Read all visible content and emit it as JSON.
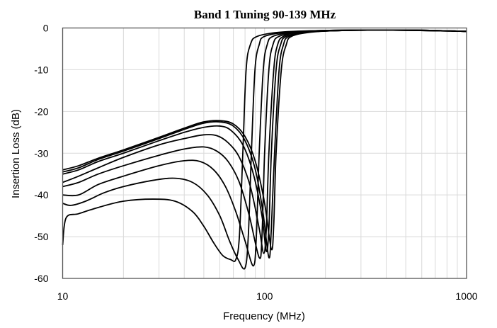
{
  "chart_data": {
    "type": "line",
    "title": "Band 1 Tuning 90-139 MHz",
    "xlabel": "Frequency (MHz)",
    "ylabel": "Insertion Loss (dB)",
    "xscale": "log",
    "xlim": [
      10,
      1000
    ],
    "ylim": [
      -60,
      0
    ],
    "xticks": [
      "10",
      "100",
      "1000"
    ],
    "yticks": [
      "0",
      "-10",
      "-20",
      "-30",
      "-40",
      "-50",
      "-60"
    ],
    "grid": true,
    "line_color": "#000000",
    "grid_color": "#d9d9d9",
    "series": [
      {
        "points": [
          [
            10,
            -52
          ],
          [
            10.4,
            -45.5
          ],
          [
            12,
            -44.5
          ],
          [
            15,
            -43
          ],
          [
            20,
            -41.5
          ],
          [
            28,
            -41
          ],
          [
            36,
            -41.5
          ],
          [
            44,
            -44
          ],
          [
            50,
            -47.5
          ],
          [
            56,
            -51.5
          ],
          [
            62,
            -54.5
          ],
          [
            68,
            -55.5
          ],
          [
            72,
            -55.5
          ],
          [
            75,
            -50
          ],
          [
            78,
            -30
          ],
          [
            81,
            -10
          ],
          [
            85,
            -4
          ],
          [
            92,
            -2
          ],
          [
            120,
            -1
          ],
          [
            200,
            -0.6
          ],
          [
            400,
            -0.5
          ],
          [
            1000,
            -0.8
          ]
        ]
      },
      {
        "points": [
          [
            10,
            -42
          ],
          [
            11,
            -42.5
          ],
          [
            13,
            -41.5
          ],
          [
            16,
            -39.5
          ],
          [
            20,
            -38
          ],
          [
            28,
            -36.5
          ],
          [
            36,
            -36
          ],
          [
            44,
            -37
          ],
          [
            52,
            -40
          ],
          [
            60,
            -45
          ],
          [
            67,
            -51
          ],
          [
            74,
            -55.5
          ],
          [
            80,
            -57.5
          ],
          [
            83,
            -50
          ],
          [
            86,
            -30
          ],
          [
            89.6,
            -10
          ],
          [
            94,
            -4
          ],
          [
            100,
            -2
          ],
          [
            130,
            -1
          ],
          [
            200,
            -0.6
          ],
          [
            400,
            -0.5
          ],
          [
            1000,
            -0.8
          ]
        ]
      },
      {
        "points": [
          [
            10,
            -40
          ],
          [
            12,
            -40
          ],
          [
            15,
            -37.5
          ],
          [
            20,
            -35.5
          ],
          [
            30,
            -33
          ],
          [
            40,
            -31.8
          ],
          [
            48,
            -32
          ],
          [
            56,
            -34
          ],
          [
            64,
            -38
          ],
          [
            72,
            -44
          ],
          [
            80,
            -51
          ],
          [
            88,
            -57
          ],
          [
            91,
            -50
          ],
          [
            94,
            -30
          ],
          [
            98.5,
            -10
          ],
          [
            103,
            -4
          ],
          [
            110,
            -2
          ],
          [
            140,
            -1
          ],
          [
            200,
            -0.6
          ],
          [
            400,
            -0.5
          ],
          [
            1000,
            -0.8
          ]
        ]
      },
      {
        "points": [
          [
            10,
            -38
          ],
          [
            12,
            -37
          ],
          [
            15,
            -35
          ],
          [
            20,
            -33
          ],
          [
            30,
            -30.5
          ],
          [
            40,
            -29
          ],
          [
            50,
            -28.5
          ],
          [
            58,
            -29.5
          ],
          [
            66,
            -32
          ],
          [
            75,
            -37
          ],
          [
            84,
            -45
          ],
          [
            94,
            -55
          ],
          [
            97,
            -50
          ],
          [
            100,
            -30
          ],
          [
            105,
            -10
          ],
          [
            110,
            -4
          ],
          [
            118,
            -2
          ],
          [
            150,
            -1
          ],
          [
            250,
            -0.6
          ],
          [
            500,
            -0.5
          ],
          [
            1000,
            -0.8
          ]
        ]
      },
      {
        "points": [
          [
            10,
            -37
          ],
          [
            12,
            -35.5
          ],
          [
            15,
            -33.5
          ],
          [
            20,
            -31
          ],
          [
            30,
            -28
          ],
          [
            40,
            -26.5
          ],
          [
            50,
            -25.6
          ],
          [
            58,
            -25.8
          ],
          [
            66,
            -27.5
          ],
          [
            75,
            -31
          ],
          [
            85,
            -38
          ],
          [
            94,
            -48
          ],
          [
            99,
            -54
          ],
          [
            102,
            -48
          ],
          [
            105,
            -30
          ],
          [
            111,
            -10
          ],
          [
            116,
            -4
          ],
          [
            124,
            -2
          ],
          [
            150,
            -1
          ],
          [
            250,
            -0.6
          ],
          [
            500,
            -0.5
          ],
          [
            1000,
            -0.8
          ]
        ]
      },
      {
        "points": [
          [
            10,
            -35
          ],
          [
            12,
            -34
          ],
          [
            15,
            -32
          ],
          [
            20,
            -30
          ],
          [
            30,
            -27
          ],
          [
            40,
            -25
          ],
          [
            50,
            -23.8
          ],
          [
            60,
            -23.5
          ],
          [
            68,
            -24.5
          ],
          [
            78,
            -28
          ],
          [
            88,
            -35
          ],
          [
            97,
            -45
          ],
          [
            102,
            -53.5
          ],
          [
            105,
            -48
          ],
          [
            108,
            -30
          ],
          [
            114,
            -10
          ],
          [
            120,
            -4
          ],
          [
            128,
            -2
          ],
          [
            160,
            -1
          ],
          [
            250,
            -0.6
          ],
          [
            500,
            -0.5
          ],
          [
            1000,
            -0.8
          ]
        ]
      },
      {
        "points": [
          [
            10,
            -34.5
          ],
          [
            12,
            -33.5
          ],
          [
            15,
            -31.5
          ],
          [
            20,
            -29.5
          ],
          [
            30,
            -26.5
          ],
          [
            40,
            -24.3
          ],
          [
            50,
            -22.8
          ],
          [
            60,
            -22.5
          ],
          [
            70,
            -23.5
          ],
          [
            80,
            -27
          ],
          [
            90,
            -34
          ],
          [
            98,
            -44
          ],
          [
            105,
            -55
          ],
          [
            108,
            -48
          ],
          [
            112,
            -30
          ],
          [
            118,
            -10
          ],
          [
            124,
            -4
          ],
          [
            132,
            -2
          ],
          [
            165,
            -1
          ],
          [
            250,
            -0.6
          ],
          [
            500,
            -0.5
          ],
          [
            1000,
            -0.8
          ]
        ]
      },
      {
        "points": [
          [
            10,
            -34
          ],
          [
            12,
            -33
          ],
          [
            15,
            -31.2
          ],
          [
            20,
            -29.2
          ],
          [
            30,
            -26.2
          ],
          [
            40,
            -24
          ],
          [
            50,
            -22.5
          ],
          [
            60,
            -22.2
          ],
          [
            70,
            -23
          ],
          [
            80,
            -26
          ],
          [
            90,
            -32
          ],
          [
            100,
            -42
          ],
          [
            108,
            -53
          ],
          [
            111,
            -47
          ],
          [
            114,
            -30
          ],
          [
            121,
            -10
          ],
          [
            128,
            -4
          ],
          [
            136,
            -2
          ],
          [
            170,
            -1
          ],
          [
            250,
            -0.6
          ],
          [
            500,
            -0.5
          ],
          [
            1000,
            -0.8
          ]
        ]
      }
    ]
  }
}
